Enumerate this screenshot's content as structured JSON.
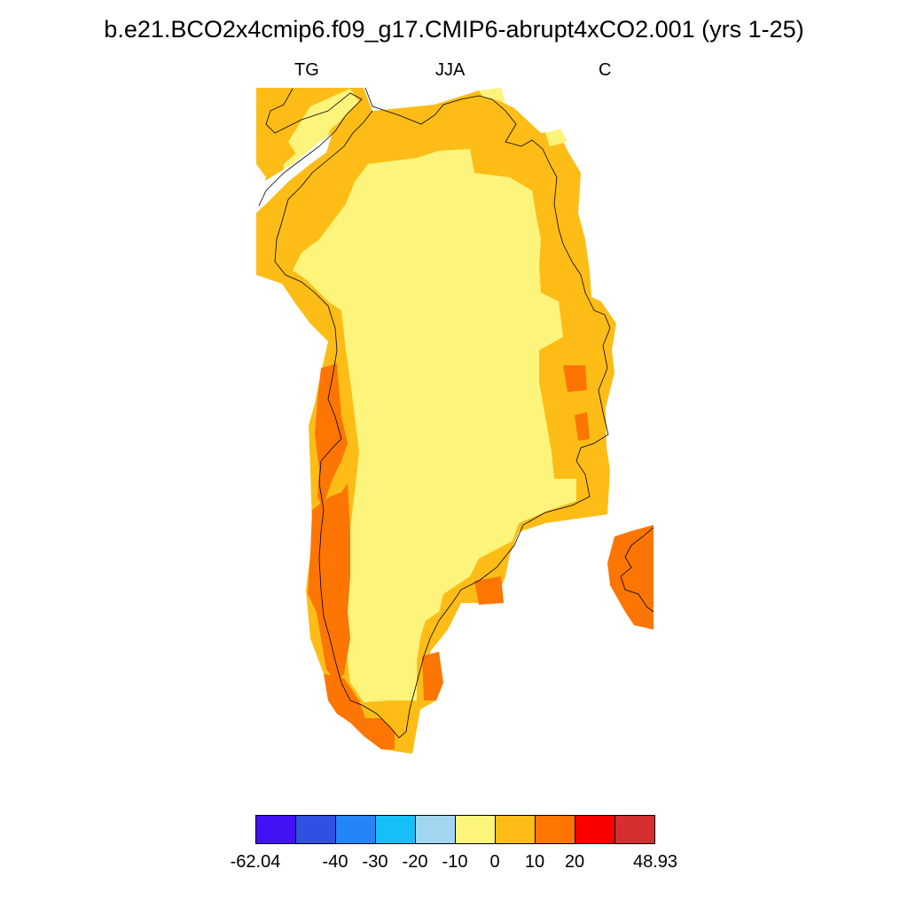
{
  "title": "b.e21.BCO2x4cmip6.f09_g17.CMIP6-abrupt4xCO2.001 (yrs 1-25)",
  "subtitles": {
    "left": "TG",
    "center": "JJA",
    "right": "C"
  },
  "legend": {
    "colors": [
      "#4410f4",
      "#3050e2",
      "#2585f8",
      "#15bff8",
      "#a2d5f0",
      "#fdf47c",
      "#fdbd16",
      "#fd7503",
      "#fc0000",
      "#d42e2e"
    ],
    "labels": [
      "-62.04",
      "-40",
      "-30",
      "-20",
      "-10",
      "0",
      "10",
      "20",
      "48.93"
    ]
  },
  "map": {
    "region": "Greenland",
    "classes": {
      "low": "#fdf47c",
      "mid": "#fdbd16",
      "high": "#fd7503"
    }
  }
}
